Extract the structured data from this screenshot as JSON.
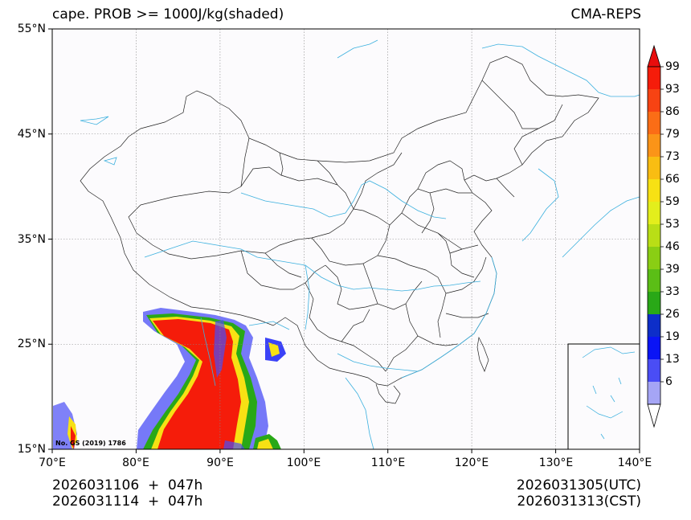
{
  "title": {
    "left": "cape. PROB >= 1000J/kg(shaded)",
    "right": "CMA-REPS"
  },
  "map": {
    "lon_range": [
      70,
      140
    ],
    "lat_range": [
      15,
      55
    ],
    "lat_labels": [
      "55°N",
      "45°N",
      "35°N",
      "25°N",
      "15°N"
    ],
    "lon_labels": [
      "70°E",
      "80°E",
      "90°E",
      "100°E",
      "110°E",
      "120°E",
      "130°E",
      "140°E"
    ],
    "watermark": "No. GS (2019) 1786"
  },
  "colorbar": {
    "labels": [
      "99",
      "93",
      "86",
      "79",
      "73",
      "66",
      "59",
      "53",
      "46",
      "39",
      "33",
      "26",
      "19",
      "13",
      "6"
    ],
    "colors": [
      "#f51c0a",
      "#f74313",
      "#fb6d16",
      "#fb9418",
      "#f9bd12",
      "#f7e114",
      "#e3ee1c",
      "#b9de16",
      "#8ace14",
      "#5bbe16",
      "#29a817",
      "#0d2ec9",
      "#0a14f5",
      "#4a4df5",
      "#a5a5f5"
    ],
    "over_color": "#e80d0d",
    "under_color": "#ffffff"
  },
  "footer": {
    "init_utc": "2026031106  +  047h",
    "init_cst": "2026031114  +  047h",
    "valid_utc": "2026031305(UTC)",
    "valid_cst": "2026031313(CST)"
  }
}
